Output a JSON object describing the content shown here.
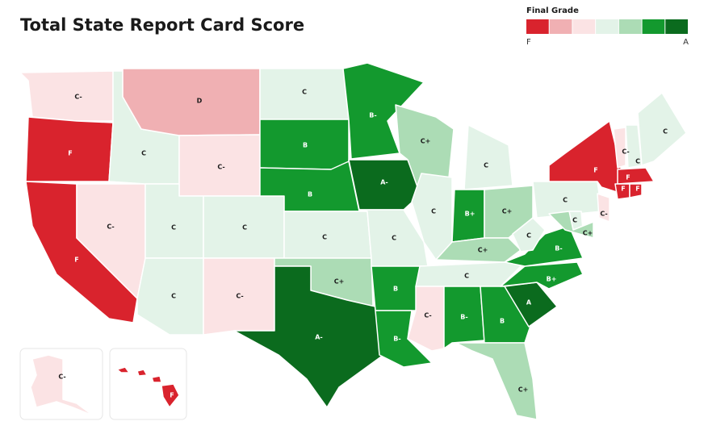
{
  "header": {
    "title": "Total State Report Card Score"
  },
  "legend": {
    "title": "Final Grade",
    "low_label": "F",
    "high_label": "A",
    "colors": [
      "#d9232d",
      "#f0b0b3",
      "#fbe3e4",
      "#e3f3e8",
      "#acdcb5",
      "#13992e",
      "#0b6b1e"
    ]
  },
  "states": [
    {
      "grade": "C-",
      "color": "#fbe3e4"
    },
    {
      "grade": "F",
      "color": "#d9232d"
    },
    {
      "grade": "F",
      "color": "#d9232d"
    },
    {
      "grade": "C-",
      "color": "#fbe3e4"
    },
    {
      "grade": "C",
      "color": "#e3f3e8"
    },
    {
      "grade": "D",
      "color": "#f0b0b3"
    },
    {
      "grade": "C-",
      "color": "#fbe3e4"
    },
    {
      "grade": "C",
      "color": "#e3f3e8"
    },
    {
      "grade": "C",
      "color": "#e3f3e8"
    },
    {
      "grade": "C",
      "color": "#e3f3e8"
    },
    {
      "grade": "C-",
      "color": "#fbe3e4"
    },
    {
      "grade": "C",
      "color": "#e3f3e8"
    },
    {
      "grade": "B",
      "color": "#13992e"
    },
    {
      "grade": "B",
      "color": "#13992e"
    },
    {
      "grade": "C",
      "color": "#e3f3e8"
    },
    {
      "grade": "C+",
      "color": "#acdcb5"
    },
    {
      "grade": "A-",
      "color": "#0b6b1e"
    },
    {
      "grade": "B-",
      "color": "#13992e"
    },
    {
      "grade": "A-",
      "color": "#0b6b1e"
    },
    {
      "grade": "C",
      "color": "#e3f3e8"
    },
    {
      "grade": "B",
      "color": "#13992e"
    },
    {
      "grade": "B-",
      "color": "#13992e"
    },
    {
      "grade": "C+",
      "color": "#acdcb5"
    },
    {
      "grade": "C",
      "color": "#e3f3e8"
    },
    {
      "grade": "C",
      "color": "#e3f3e8"
    },
    {
      "grade": "B+",
      "color": "#13992e"
    },
    {
      "grade": "C+",
      "color": "#acdcb5"
    },
    {
      "grade": "C+",
      "color": "#acdcb5"
    },
    {
      "grade": "C",
      "color": "#e3f3e8"
    },
    {
      "grade": "C-",
      "color": "#fbe3e4"
    },
    {
      "grade": "B-",
      "color": "#13992e"
    },
    {
      "grade": "B",
      "color": "#13992e"
    },
    {
      "grade": "C+",
      "color": "#acdcb5"
    },
    {
      "grade": "A",
      "color": "#0b6b1e"
    },
    {
      "grade": "B+",
      "color": "#13992e"
    },
    {
      "grade": "B-",
      "color": "#13992e"
    },
    {
      "grade": "C",
      "color": "#e3f3e8"
    },
    {
      "grade": "C",
      "color": "#e3f3e8"
    },
    {
      "grade": "F",
      "color": "#d9232d"
    },
    {
      "grade": "C-",
      "color": "#fbe3e4"
    },
    {
      "grade": "C",
      "color": "#e3f3e8"
    },
    {
      "grade": "C",
      "color": "#e3f3e8"
    },
    {
      "grade": "F",
      "color": "#d9232d"
    },
    {
      "grade": "F",
      "color": "#d9232d"
    },
    {
      "grade": "F",
      "color": "#d9232d"
    },
    {
      "grade": "C-",
      "color": "#fbe3e4"
    },
    {
      "grade": "C",
      "color": "#e3f3e8"
    },
    {
      "grade": "C+",
      "color": "#acdcb5"
    },
    {
      "grade": "C-",
      "color": "#fbe3e4"
    },
    {
      "grade": "F",
      "color": "#d9232d"
    }
  ]
}
